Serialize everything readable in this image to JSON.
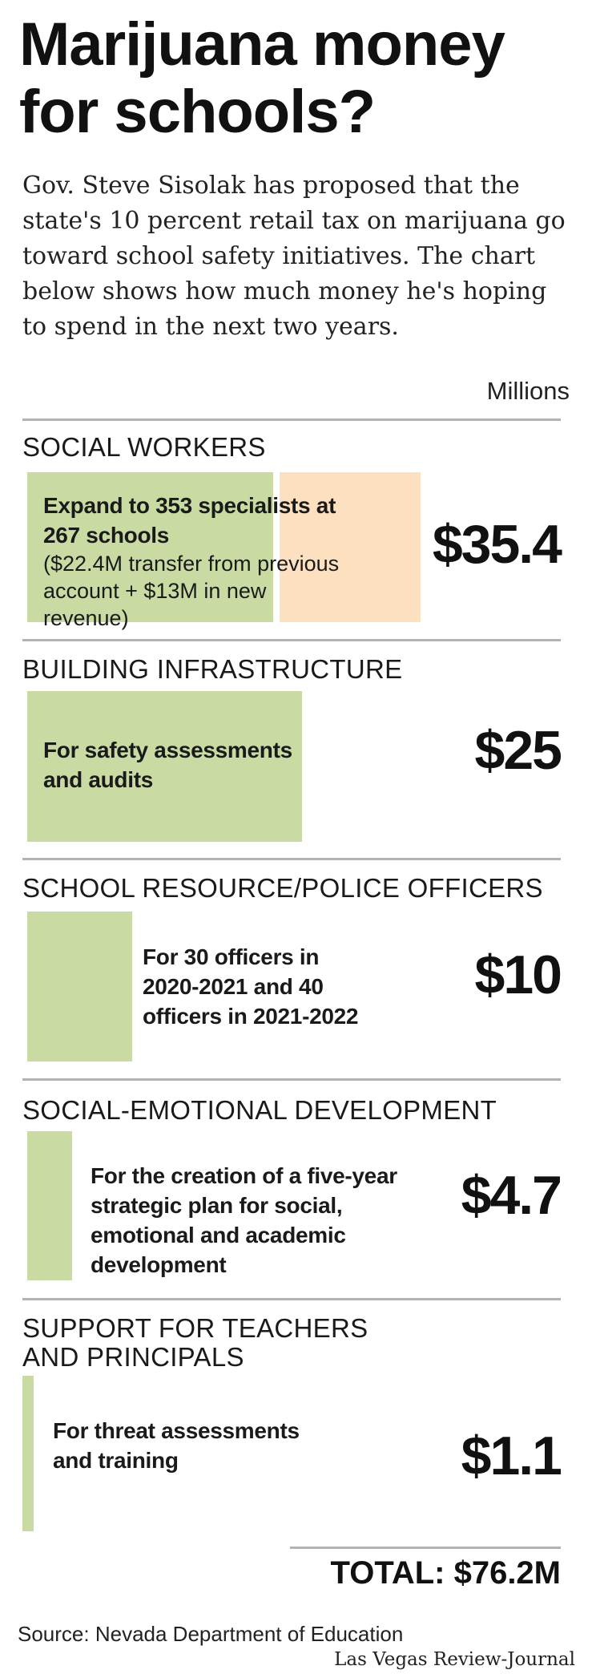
{
  "title": [
    "Marijuana money",
    "for schools?"
  ],
  "intro": "Gov. Steve Sisolak has proposed that the state's 10 percent retail tax on marijuana go toward school safety initiatives. The chart below shows how much money he's hoping to spend in the next two years.",
  "units": "Millions",
  "colors": {
    "bar": "#c9dba3",
    "bar_secondary": "#fde0c0",
    "rule": "#b3b3b3"
  },
  "chart_data": {
    "type": "bar",
    "orientation": "horizontal",
    "unit": "Millions",
    "categories": [
      "SOCIAL WORKERS",
      "BUILDING INFRASTRUCTURE",
      "SCHOOL RESOURCE/POLICE OFFICERS",
      "SOCIAL-EMOTIONAL DEVELOPMENT",
      "SUPPORT FOR TEACHERS AND PRINCIPALS"
    ],
    "values": [
      35.4,
      25,
      10,
      4.7,
      1.1
    ],
    "value_labels": [
      "$35.4",
      "$25",
      "$10",
      "$4.7",
      "$1.1"
    ],
    "segments_first_bar": [
      22.4,
      13
    ],
    "descriptions": [
      {
        "bold": "Expand to 353 specialists at 267 schools",
        "sub": "($22.4M transfer from previous account + $13M in new revenue)"
      },
      {
        "bold": "For safety assessments and audits",
        "sub": ""
      },
      {
        "bold": "For 30 officers in 2020-2021 and 40 officers in 2021-2022",
        "sub": ""
      },
      {
        "bold": "For the creation of a five-year strategic plan for social, emotional and academic development",
        "sub": ""
      },
      {
        "bold": "For threat assessments and training",
        "sub": ""
      }
    ],
    "total_label": "TOTAL: $76.2M"
  },
  "source": "Source: Nevada Department of Education",
  "credit": "Las Vegas Review-Journal"
}
